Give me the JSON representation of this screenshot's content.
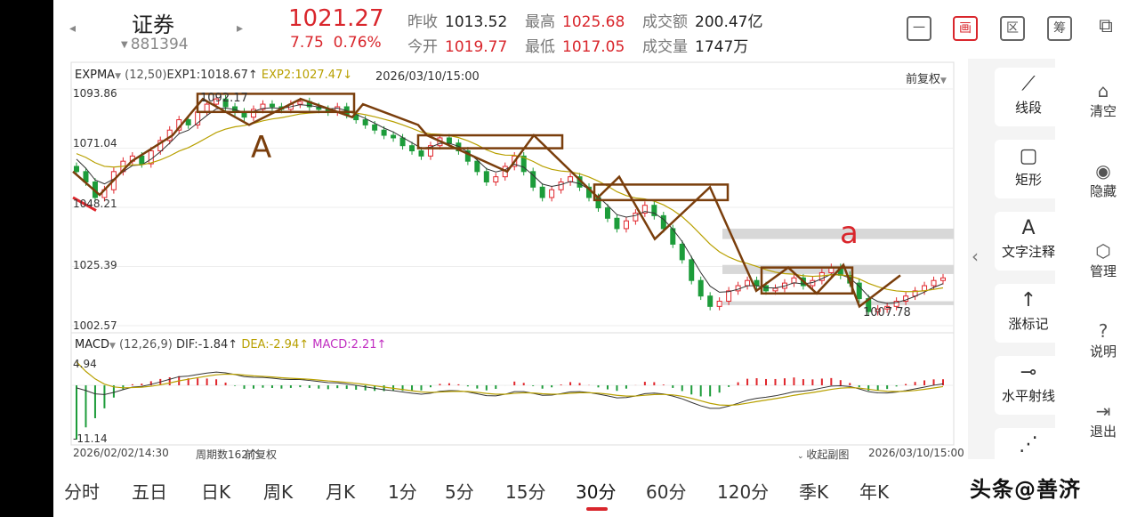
{
  "header": {
    "stock_name": "证券",
    "stock_code": "881394",
    "price": "1021.27",
    "change": "7.75",
    "change_pct": "0.76%",
    "stats": [
      {
        "k": "昨收",
        "v": "1013.52",
        "red": false
      },
      {
        "k": "今开",
        "v": "1019.77",
        "red": true
      },
      {
        "k": "最高",
        "v": "1025.68",
        "red": true
      },
      {
        "k": "最低",
        "v": "1017.05",
        "red": true
      },
      {
        "k": "成交额",
        "v": "200.47亿",
        "red": false
      },
      {
        "k": "成交量",
        "v": "1747万",
        "red": false
      }
    ],
    "tools": [
      "一",
      "画",
      "区",
      "筹",
      "⧉"
    ]
  },
  "chart_data": {
    "type": "candlestick",
    "indicator": "EXPMA",
    "indicator_params": "(12,50)",
    "exp1": "EXP1:1018.67↑",
    "exp2": "EXP2:1027.47↓",
    "cursor_time": "2026/03/10/15:00",
    "adjust": "前复权",
    "y_ticks": [
      "1093.86",
      "1071.04",
      "1048.21",
      "1025.39",
      "1002.57"
    ],
    "ylim": [
      1002.57,
      1093.86
    ],
    "high_label": "1092.17",
    "low_label": "1007.78",
    "annotations": [
      "A",
      "a"
    ],
    "closes": [
      1062,
      1058,
      1052,
      1055,
      1062,
      1066,
      1068,
      1065,
      1070,
      1074,
      1078,
      1082,
      1080,
      1085,
      1088,
      1090,
      1087,
      1085,
      1083,
      1086,
      1088,
      1087,
      1086,
      1088,
      1089,
      1087,
      1086,
      1085,
      1087,
      1084,
      1082,
      1080,
      1078,
      1076,
      1075,
      1072,
      1070,
      1068,
      1072,
      1075,
      1073,
      1070,
      1066,
      1062,
      1058,
      1060,
      1064,
      1068,
      1062,
      1056,
      1052,
      1055,
      1058,
      1060,
      1056,
      1052,
      1048,
      1044,
      1040,
      1043,
      1046,
      1049,
      1045,
      1040,
      1034,
      1028,
      1020,
      1014,
      1010,
      1012,
      1016,
      1018,
      1020,
      1018,
      1016,
      1017,
      1019,
      1021,
      1018,
      1020,
      1023,
      1025,
      1022,
      1019,
      1013,
      1008,
      1009,
      1010,
      1012,
      1014,
      1016,
      1018,
      1020,
      1021
    ],
    "macd": {
      "title": "MACD",
      "params": "(12,26,9)",
      "dif": "DIF:-1.84↑",
      "dea": "DEA:-2.94↑",
      "macd": "MACD:2.21↑",
      "y_ticks": [
        "4.94",
        "-11.14"
      ],
      "ylim": [
        -11.14,
        4.94
      ]
    },
    "x_start": "2026/02/02/14:30",
    "period_count": "周期数162个",
    "x_adjust": "前复权",
    "fold_label": "收起副图",
    "x_end": "2026/03/10/15:00"
  },
  "side_tools": [
    {
      "icon": "⟋",
      "label": "线段"
    },
    {
      "icon": "▢",
      "label": "矩形"
    },
    {
      "icon": "A",
      "label": "文字注释"
    },
    {
      "icon": "↑",
      "label": "涨标记"
    },
    {
      "icon": "⊸",
      "label": "水平射线"
    },
    {
      "icon": "⋰",
      "label": ""
    }
  ],
  "side_tools2": [
    {
      "icon": "⌂",
      "label": "清空"
    },
    {
      "icon": "◉",
      "label": "隐藏"
    },
    {
      "icon": "⬡",
      "label": "管理"
    },
    {
      "icon": "?",
      "label": "说明"
    },
    {
      "icon": "⇥",
      "label": "退出"
    }
  ],
  "tabs": [
    "分时",
    "五日",
    "日K",
    "周K",
    "月K",
    "1分",
    "5分",
    "15分",
    "30分",
    "60分",
    "120分",
    "季K",
    "年K"
  ],
  "selected_tab": "30分",
  "watermark": "头条@善济",
  "colors": {
    "up": "#e0262c",
    "down": "#1d9c3a",
    "exp1": "#333333",
    "exp2": "#b8a000",
    "box": "#7a3e0c",
    "zone": "#d8d8d8"
  }
}
